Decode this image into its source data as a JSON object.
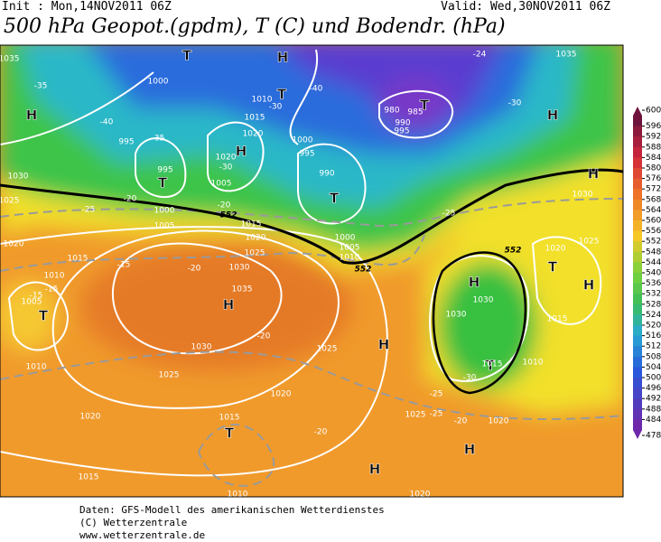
{
  "header": {
    "init": "Init : Mon,14NOV2011 06Z",
    "valid": "Valid: Wed,30NOV2011 06Z",
    "title": "500 hPa Geopot.(gpdm), T (C) und Bodendr. (hPa)"
  },
  "map": {
    "labels": [
      "H",
      "T",
      "H",
      "T",
      "H",
      "T",
      "T",
      "T",
      "H",
      "H",
      "T",
      "H",
      "H",
      "H",
      "T",
      "H",
      "T",
      "T",
      "H",
      "H",
      "1000",
      "1010",
      "1015",
      "1020",
      "995",
      "995",
      "1020",
      "1005",
      "1000",
      "995",
      "990",
      "980",
      "985",
      "990",
      "995",
      "1000",
      "1005",
      "1015",
      "1020",
      "1025",
      "1030",
      "1035",
      "1030",
      "1025",
      "1020",
      "1025",
      "1015",
      "1020",
      "1015",
      "1010",
      "1005",
      "1010",
      "1015",
      "1020",
      "1030",
      "1025",
      "1035",
      "1000",
      "1005",
      "1010",
      "1030",
      "1030",
      "1015",
      "1015",
      "1010",
      "1020",
      "1025",
      "1020",
      "1025",
      "1030",
      "1035",
      "1010",
      "1020",
      "-35",
      "-40",
      "-35",
      "-30",
      "-30",
      "-25",
      "-20",
      "-20",
      "-25",
      "-15",
      "-20",
      "-15",
      "-15",
      "-20",
      "-20",
      "-20",
      "-25",
      "-30",
      "-25",
      "-40",
      "-30",
      "-24",
      "552",
      "552",
      "552"
    ]
  },
  "colorbar": {
    "ticks": [
      600,
      596,
      592,
      588,
      584,
      580,
      576,
      572,
      568,
      564,
      560,
      556,
      552,
      548,
      544,
      540,
      536,
      532,
      528,
      524,
      520,
      516,
      512,
      508,
      504,
      500,
      496,
      492,
      488,
      484,
      478
    ]
  },
  "footer": [
    "Daten: GFS-Modell des amerikanischen Wetterdienstes",
    "(C) Wetterzentrale",
    "www.wetterzentrale.de"
  ]
}
